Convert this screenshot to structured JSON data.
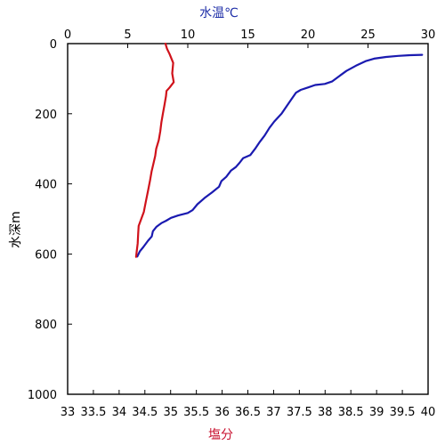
{
  "chart_data": {
    "type": "line",
    "title": "",
    "axes": {
      "y": {
        "label": "水深m",
        "range": [
          0,
          1000
        ],
        "inverted": true,
        "ticks": [
          0,
          200,
          400,
          600,
          800,
          1000
        ]
      },
      "x_top": {
        "label": "水温℃",
        "range": [
          0,
          30
        ],
        "ticks": [
          0,
          5,
          10,
          15,
          20,
          25,
          30
        ]
      },
      "x_bottom": {
        "label": "塩分",
        "range": [
          33,
          40
        ],
        "ticks": [
          "33",
          "33.5",
          "34",
          "34.5",
          "35",
          "35.5",
          "36",
          "36.5",
          "37",
          "37.5",
          "38",
          "38.5",
          "39",
          "39.5",
          "40"
        ]
      }
    },
    "grid": false,
    "series": [
      {
        "axis": "x_top",
        "color": "#1a1ab0",
        "points": [
          [
            29.5,
            32
          ],
          [
            28.5,
            33
          ],
          [
            27.5,
            35
          ],
          [
            26.5,
            38
          ],
          [
            25.5,
            43
          ],
          [
            24.8,
            50
          ],
          [
            24.0,
            63
          ],
          [
            23.2,
            78
          ],
          [
            22.6,
            93
          ],
          [
            22.0,
            108
          ],
          [
            21.4,
            115
          ],
          [
            20.6,
            118
          ],
          [
            20.0,
            125
          ],
          [
            19.4,
            132
          ],
          [
            19.0,
            140
          ],
          [
            18.6,
            160
          ],
          [
            18.2,
            180
          ],
          [
            17.8,
            200
          ],
          [
            17.2,
            222
          ],
          [
            16.8,
            240
          ],
          [
            16.4,
            262
          ],
          [
            16.0,
            280
          ],
          [
            15.6,
            300
          ],
          [
            15.2,
            318
          ],
          [
            14.6,
            327
          ],
          [
            14.3,
            340
          ],
          [
            14.0,
            352
          ],
          [
            13.6,
            362
          ],
          [
            13.2,
            380
          ],
          [
            12.8,
            392
          ],
          [
            12.6,
            408
          ],
          [
            12.0,
            425
          ],
          [
            11.4,
            440
          ],
          [
            10.8,
            458
          ],
          [
            10.4,
            475
          ],
          [
            10.0,
            483
          ],
          [
            9.2,
            490
          ],
          [
            8.6,
            497
          ],
          [
            8.2,
            505
          ],
          [
            7.8,
            512
          ],
          [
            7.4,
            522
          ],
          [
            7.1,
            535
          ],
          [
            7.0,
            550
          ],
          [
            6.7,
            562
          ],
          [
            6.3,
            580
          ],
          [
            6.0,
            593
          ],
          [
            5.8,
            607
          ]
        ]
      },
      {
        "axis": "x_bottom",
        "color": "#d0121b",
        "points": [
          [
            34.9,
            0
          ],
          [
            34.93,
            15
          ],
          [
            34.98,
            30
          ],
          [
            35.05,
            55
          ],
          [
            35.03,
            85
          ],
          [
            35.06,
            110
          ],
          [
            34.98,
            125
          ],
          [
            34.92,
            135
          ],
          [
            34.91,
            150
          ],
          [
            34.88,
            175
          ],
          [
            34.85,
            200
          ],
          [
            34.82,
            225
          ],
          [
            34.8,
            250
          ],
          [
            34.77,
            275
          ],
          [
            34.72,
            300
          ],
          [
            34.7,
            320
          ],
          [
            34.67,
            340
          ],
          [
            34.63,
            365
          ],
          [
            34.6,
            390
          ],
          [
            34.56,
            420
          ],
          [
            34.52,
            450
          ],
          [
            34.48,
            480
          ],
          [
            34.43,
            500
          ],
          [
            34.38,
            520
          ],
          [
            34.37,
            540
          ],
          [
            34.36,
            570
          ],
          [
            34.34,
            595
          ],
          [
            34.33,
            608
          ]
        ]
      }
    ]
  }
}
